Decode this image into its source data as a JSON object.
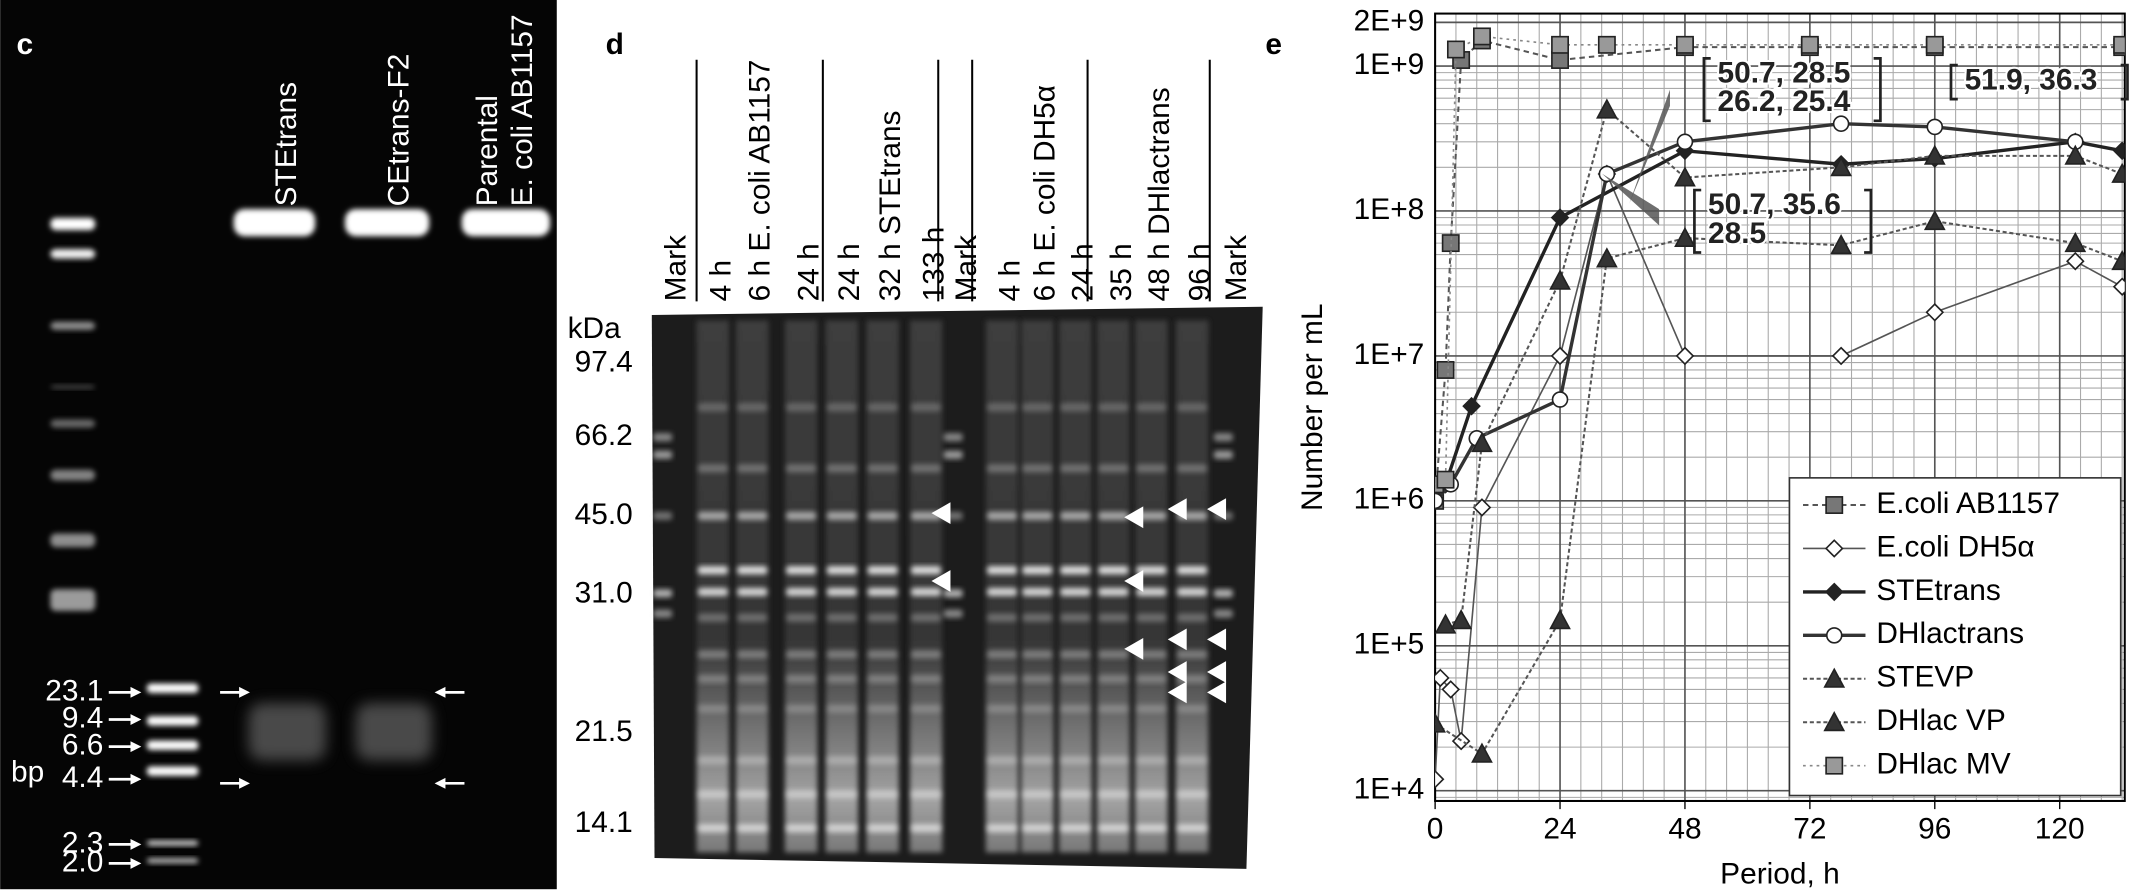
{
  "panel_c": {
    "label": "c",
    "lanes": [
      [
        "STEtrans"
      ],
      [
        "CEtrans-F2"
      ],
      [
        "Parental",
        "E. coli AB1157"
      ]
    ],
    "markers": [
      "23.1",
      "9.4",
      "6.6",
      "4.4",
      "2.3",
      "2.0"
    ],
    "unit": "bp"
  },
  "panel_d": {
    "label": "d",
    "unit": "kDa",
    "markers": [
      "97.4",
      "66.2",
      "45.0",
      "31.0",
      "21.5",
      "14.1"
    ],
    "lanes": [
      "Mark",
      "4 h",
      "6 h E. coli AB1157",
      "24 h",
      "24 h",
      "32 h STEtrans",
      "133 h",
      "Mark",
      "4 h",
      "6 h E. coli DH5α",
      "24 h",
      "35 h",
      "48 h DHlactrans",
      "96 h",
      "Mark"
    ]
  },
  "chart_data": {
    "type": "line",
    "panel_label": "e",
    "x_label": "Period, h",
    "y_label": "Number per mL",
    "log_y": true,
    "grid": true,
    "xlim": [
      0,
      132.5
    ],
    "ylim": [
      8500,
      2300000000
    ],
    "xticks": [
      0,
      24,
      48,
      72,
      96,
      120
    ],
    "yticks": [
      {
        "value": 10000,
        "label": "1E+4"
      },
      {
        "value": 100000,
        "label": "1E+5"
      },
      {
        "value": 1000000,
        "label": "1E+6"
      },
      {
        "value": 10000000,
        "label": "1E+7"
      },
      {
        "value": 100000000,
        "label": "1E+8"
      },
      {
        "value": 1000000000,
        "label": "1E+9"
      },
      {
        "value": 2000000000,
        "label": "2E+9"
      }
    ],
    "legend": "bottom-right",
    "series": [
      {
        "name": "E.coli AB1157",
        "color": "#555555",
        "marker": "square",
        "marker_fill": "#777777",
        "dash": "4 3",
        "line_width": 1.5,
        "x": [
          0,
          2,
          3,
          5,
          9,
          24,
          48,
          72,
          96,
          132
        ],
        "values": [
          1000000,
          8000000,
          60000000,
          1100000000,
          1500000000,
          1100000000,
          1350000000,
          1350000000,
          1350000000,
          1350000000
        ]
      },
      {
        "name": "E.coli DH5α",
        "color": "#555555",
        "marker": "diamond",
        "marker_fill": "#ffffff",
        "dash": "",
        "line_width": 1.2,
        "x": [
          0,
          1,
          3,
          5,
          9,
          24,
          33,
          48,
          78,
          96,
          123,
          132
        ],
        "values": [
          12000,
          60000,
          50000,
          22000,
          900000,
          10000000,
          180000000,
          10000000,
          10000000,
          20000000,
          45000000,
          30000000
        ]
      },
      {
        "name": "STEtrans",
        "color": "#222222",
        "marker": "diamond",
        "marker_fill": "#222222",
        "dash": "",
        "line_width": 2.5,
        "x": [
          0,
          2,
          7,
          24,
          48,
          78,
          96,
          123,
          132
        ],
        "values": [
          1000000,
          1300000,
          4500000,
          90000000,
          260000000,
          210000000,
          230000000,
          300000000,
          260000000
        ]
      },
      {
        "name": "DHlactrans",
        "color": "#333333",
        "marker": "circle",
        "marker_fill": "#ffffff",
        "dash": "",
        "line_width": 2.5,
        "x": [
          0,
          3,
          8,
          24,
          33,
          48,
          78,
          96,
          123
        ],
        "values": [
          1000000,
          1300000,
          2700000,
          5000000,
          180000000,
          300000000,
          400000000,
          380000000,
          300000000
        ]
      },
      {
        "name": "STEVP",
        "color": "#555555",
        "marker": "triangle",
        "marker_fill": "#333333",
        "dash": "3 2",
        "line_width": 1.5,
        "x": [
          2,
          5,
          9,
          24,
          33,
          48,
          78,
          96,
          123,
          132
        ],
        "values": [
          140000,
          150000,
          2500000,
          33000000,
          500000000,
          170000000,
          200000000,
          240000000,
          240000000,
          180000000
        ]
      },
      {
        "name": "DHlac VP",
        "color": "#555555",
        "marker": "triangle",
        "marker_fill": "#333333",
        "dash": "3 2",
        "line_width": 1.5,
        "x": [
          0,
          9,
          24,
          33,
          48,
          78,
          96,
          123,
          132
        ],
        "values": [
          29000,
          18000,
          150000,
          47000000,
          65000000,
          58000000,
          85000000,
          60000000,
          45000000
        ]
      },
      {
        "name": "DHlac MV",
        "color": "#888888",
        "marker": "square",
        "marker_fill": "#999999",
        "dash": "2 3",
        "line_width": 1.2,
        "x": [
          0,
          2,
          4,
          9,
          24,
          33,
          48,
          72,
          96,
          132
        ],
        "values": [
          1300000,
          1400000,
          1300000000,
          1600000000,
          1400000000,
          1400000000,
          1400000000,
          1400000000,
          1400000000,
          1400000000
        ]
      }
    ],
    "annotations": [
      {
        "lines": [
          "50.7, 28.5",
          "26.2, 25.4"
        ]
      },
      {
        "lines": [
          "51.9, 36.3"
        ]
      },
      {
        "lines": [
          "50.7, 35.6",
          "28.5"
        ]
      }
    ]
  }
}
